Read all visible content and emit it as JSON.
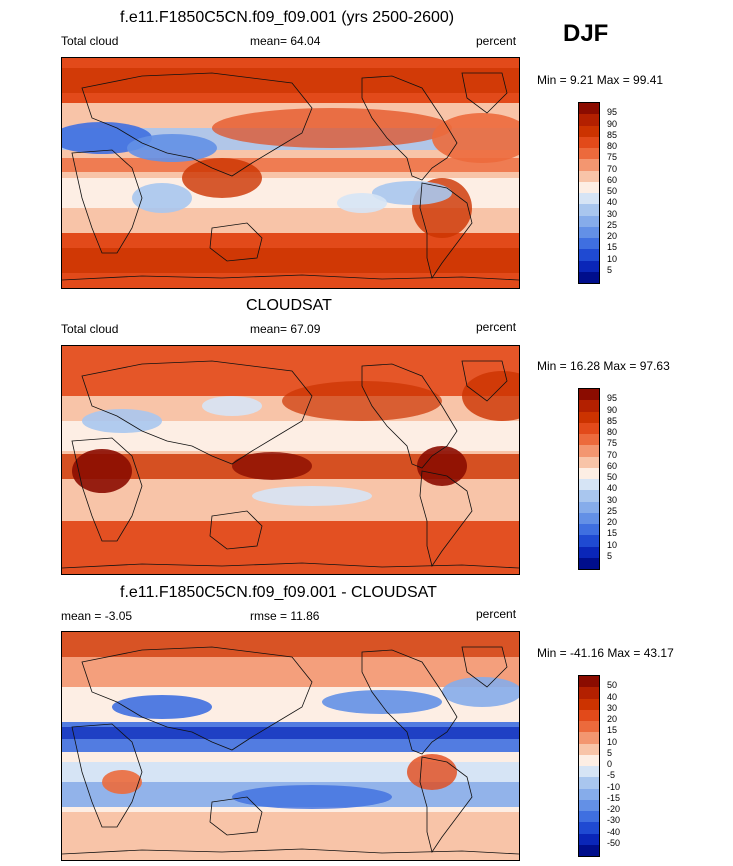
{
  "season_label": "DJF",
  "chart_data": [
    {
      "type": "heatmap",
      "title": "f.e11.F1850C5CN.f09_f09.001 (yrs 2500-2600)",
      "left_label": "Total cloud",
      "center_label": "mean=  64.04",
      "right_label": "percent",
      "minmax_label": "Min =   9.21 Max =  99.41",
      "mean": 64.04,
      "min": 9.21,
      "max": 99.41,
      "colorbar_levels": [
        "95",
        "90",
        "85",
        "80",
        "75",
        "70",
        "60",
        "50",
        "40",
        "30",
        "25",
        "20",
        "15",
        "10",
        "5"
      ],
      "colorbar_colors": [
        "#8b0c00",
        "#b32000",
        "#cc3300",
        "#e24a1a",
        "#ec6a3c",
        "#f39670",
        "#f8c4a8",
        "#fdeee4",
        "#d6e4f5",
        "#a9c6ee",
        "#86acea",
        "#6390e6",
        "#3f6fe0",
        "#1f4ad2",
        "#0a26b8",
        "#000e8c"
      ]
    },
    {
      "type": "heatmap",
      "title": "CLOUDSAT",
      "left_label": "Total cloud",
      "center_label": "mean=  67.09",
      "right_label": "percent",
      "minmax_label": "Min =  16.28 Max =  97.63",
      "mean": 67.09,
      "min": 16.28,
      "max": 97.63,
      "colorbar_levels": [
        "95",
        "90",
        "85",
        "80",
        "75",
        "70",
        "60",
        "50",
        "40",
        "30",
        "25",
        "20",
        "15",
        "10",
        "5"
      ],
      "colorbar_colors": [
        "#8b0c00",
        "#b32000",
        "#cc3300",
        "#e24a1a",
        "#ec6a3c",
        "#f39670",
        "#f8c4a8",
        "#fdeee4",
        "#d6e4f5",
        "#a9c6ee",
        "#86acea",
        "#6390e6",
        "#3f6fe0",
        "#1f4ad2",
        "#0a26b8",
        "#000e8c"
      ]
    },
    {
      "type": "heatmap",
      "title": "f.e11.F1850C5CN.f09_f09.001 - CLOUDSAT",
      "left_label": "mean =  -3.05",
      "center_label": "rmse =  11.86",
      "right_label": "percent",
      "minmax_label": "Min = -41.16 Max =  43.17",
      "mean": -3.05,
      "rmse": 11.86,
      "min": -41.16,
      "max": 43.17,
      "colorbar_levels": [
        "50",
        "40",
        "30",
        "20",
        "15",
        "10",
        "5",
        "0",
        "-5",
        "-10",
        "-15",
        "-20",
        "-30",
        "-40",
        "-50"
      ],
      "colorbar_colors": [
        "#8b0c00",
        "#b32000",
        "#cc3300",
        "#e24a1a",
        "#ec6a3c",
        "#f39670",
        "#f8c4a8",
        "#fdeee4",
        "#d6e4f5",
        "#a9c6ee",
        "#86acea",
        "#6390e6",
        "#3f6fe0",
        "#1f4ad2",
        "#0a26b8",
        "#000e8c"
      ]
    }
  ]
}
